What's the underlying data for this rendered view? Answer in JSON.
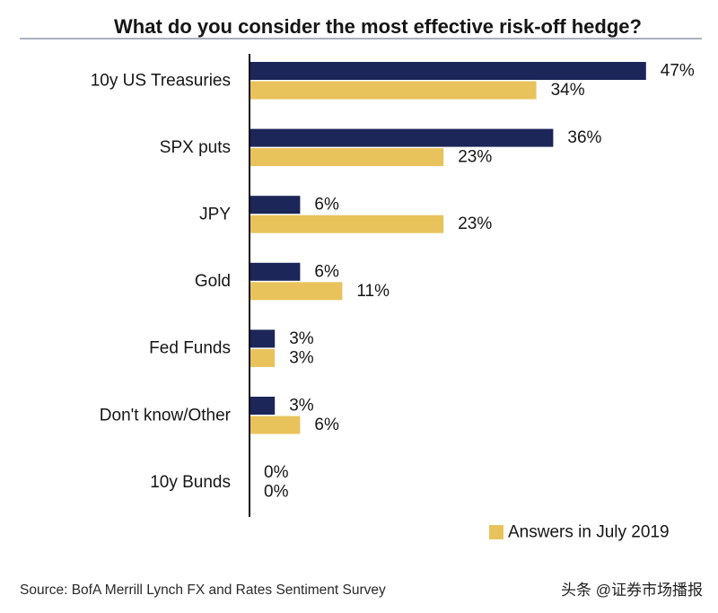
{
  "source": "Source: BofA Merrill Lynch FX and Rates Sentiment Survey",
  "watermark": "头条 @证券市场播报",
  "colors": {
    "title": "#1b2150",
    "axis": "#111111",
    "title_rule": "#8e96aa"
  },
  "chart_data": {
    "type": "bar",
    "orientation": "horizontal",
    "title": "What do you consider the most effective risk-off hedge?",
    "categories": [
      "10y US Treasuries",
      "SPX puts",
      "JPY",
      "Gold",
      "Fed Funds",
      "Don't know/Other",
      "10y Bunds"
    ],
    "series": [
      {
        "values": [
          47,
          36,
          6,
          6,
          3,
          3,
          0
        ],
        "color": "#1c2658"
      },
      {
        "name": "Answers in July 2019",
        "values": [
          34,
          23,
          23,
          11,
          3,
          6,
          0
        ],
        "color": "#e8c35c"
      }
    ],
    "value_suffix": "%",
    "xlabel": "",
    "ylabel": "",
    "grid": false,
    "data_labels": true,
    "legend": {
      "position": "bottom-right"
    }
  }
}
